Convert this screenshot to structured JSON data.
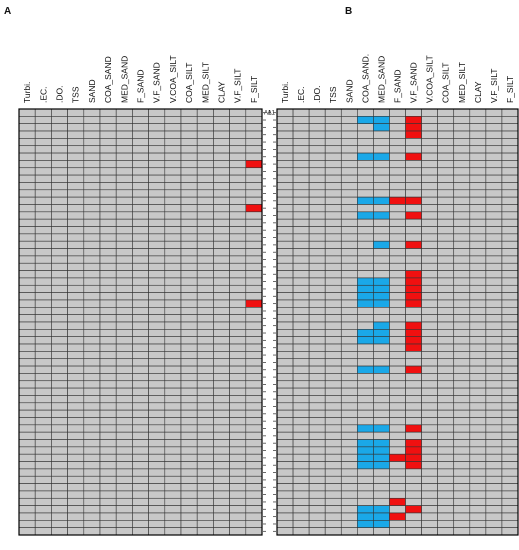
{
  "chart_data": [
    {
      "type": "heatmap",
      "panel_label": "A",
      "columns": [
        "Turbi.",
        ".EC.",
        ".DO.",
        "TSS",
        "SAND",
        "COA_SAND",
        "MED_SAND",
        "F_SAND",
        "V.F_SAND",
        "V.COA_SILT",
        "COA_SILT",
        "MED_SILT",
        "CLAY",
        "V.F_SILT",
        "F_SILT"
      ],
      "n_rows": 58,
      "row_label_first": "A1",
      "cell_states": [
        "normal",
        "blue",
        "red"
      ],
      "cells": [
        {
          "row": 7,
          "col": 14,
          "state": "red"
        },
        {
          "row": 13,
          "col": 14,
          "state": "red"
        },
        {
          "row": 26,
          "col": 14,
          "state": "red"
        }
      ]
    },
    {
      "type": "heatmap",
      "panel_label": "B",
      "columns": [
        "Turbi.",
        ".EC.",
        ".DO.",
        "TSS",
        "SAND",
        "COA_SAND.",
        "MED_SAND",
        "F_SAND",
        "V.F_SAND",
        "V.COA_SILT",
        "COA_SILT",
        "MED_SILT",
        "CLAY",
        "V.F_SILT",
        "F_SILT"
      ],
      "n_rows": 58,
      "row_label_first": "A1",
      "cell_states": [
        "normal",
        "blue",
        "red"
      ],
      "cells": [
        {
          "row": 1,
          "col": 5,
          "state": "blue"
        },
        {
          "row": 1,
          "col": 6,
          "state": "blue"
        },
        {
          "row": 1,
          "col": 8,
          "state": "red"
        },
        {
          "row": 2,
          "col": 6,
          "state": "blue"
        },
        {
          "row": 2,
          "col": 8,
          "state": "red"
        },
        {
          "row": 3,
          "col": 8,
          "state": "red"
        },
        {
          "row": 6,
          "col": 5,
          "state": "blue"
        },
        {
          "row": 6,
          "col": 6,
          "state": "blue"
        },
        {
          "row": 6,
          "col": 8,
          "state": "red"
        },
        {
          "row": 12,
          "col": 5,
          "state": "blue"
        },
        {
          "row": 12,
          "col": 6,
          "state": "blue"
        },
        {
          "row": 12,
          "col": 7,
          "state": "red"
        },
        {
          "row": 12,
          "col": 8,
          "state": "red"
        },
        {
          "row": 14,
          "col": 5,
          "state": "blue"
        },
        {
          "row": 14,
          "col": 6,
          "state": "blue"
        },
        {
          "row": 14,
          "col": 8,
          "state": "red"
        },
        {
          "row": 18,
          "col": 6,
          "state": "blue"
        },
        {
          "row": 18,
          "col": 8,
          "state": "red"
        },
        {
          "row": 22,
          "col": 8,
          "state": "red"
        },
        {
          "row": 23,
          "col": 5,
          "state": "blue"
        },
        {
          "row": 23,
          "col": 6,
          "state": "blue"
        },
        {
          "row": 23,
          "col": 8,
          "state": "red"
        },
        {
          "row": 24,
          "col": 5,
          "state": "blue"
        },
        {
          "row": 24,
          "col": 6,
          "state": "blue"
        },
        {
          "row": 24,
          "col": 8,
          "state": "red"
        },
        {
          "row": 25,
          "col": 5,
          "state": "blue"
        },
        {
          "row": 25,
          "col": 6,
          "state": "blue"
        },
        {
          "row": 25,
          "col": 8,
          "state": "red"
        },
        {
          "row": 26,
          "col": 5,
          "state": "blue"
        },
        {
          "row": 26,
          "col": 6,
          "state": "blue"
        },
        {
          "row": 26,
          "col": 8,
          "state": "red"
        },
        {
          "row": 29,
          "col": 6,
          "state": "blue"
        },
        {
          "row": 29,
          "col": 8,
          "state": "red"
        },
        {
          "row": 30,
          "col": 5,
          "state": "blue"
        },
        {
          "row": 30,
          "col": 6,
          "state": "blue"
        },
        {
          "row": 30,
          "col": 8,
          "state": "red"
        },
        {
          "row": 31,
          "col": 5,
          "state": "blue"
        },
        {
          "row": 31,
          "col": 6,
          "state": "blue"
        },
        {
          "row": 31,
          "col": 8,
          "state": "red"
        },
        {
          "row": 32,
          "col": 8,
          "state": "red"
        },
        {
          "row": 35,
          "col": 5,
          "state": "blue"
        },
        {
          "row": 35,
          "col": 6,
          "state": "blue"
        },
        {
          "row": 35,
          "col": 8,
          "state": "red"
        },
        {
          "row": 43,
          "col": 5,
          "state": "blue"
        },
        {
          "row": 43,
          "col": 6,
          "state": "blue"
        },
        {
          "row": 43,
          "col": 8,
          "state": "red"
        },
        {
          "row": 45,
          "col": 5,
          "state": "blue"
        },
        {
          "row": 45,
          "col": 6,
          "state": "blue"
        },
        {
          "row": 45,
          "col": 8,
          "state": "red"
        },
        {
          "row": 46,
          "col": 5,
          "state": "blue"
        },
        {
          "row": 46,
          "col": 6,
          "state": "blue"
        },
        {
          "row": 46,
          "col": 8,
          "state": "red"
        },
        {
          "row": 47,
          "col": 5,
          "state": "blue"
        },
        {
          "row": 47,
          "col": 6,
          "state": "blue"
        },
        {
          "row": 47,
          "col": 7,
          "state": "red"
        },
        {
          "row": 47,
          "col": 8,
          "state": "red"
        },
        {
          "row": 48,
          "col": 5,
          "state": "blue"
        },
        {
          "row": 48,
          "col": 6,
          "state": "blue"
        },
        {
          "row": 48,
          "col": 8,
          "state": "red"
        },
        {
          "row": 53,
          "col": 7,
          "state": "red"
        },
        {
          "row": 54,
          "col": 5,
          "state": "blue"
        },
        {
          "row": 54,
          "col": 6,
          "state": "blue"
        },
        {
          "row": 54,
          "col": 8,
          "state": "red"
        },
        {
          "row": 55,
          "col": 5,
          "state": "blue"
        },
        {
          "row": 55,
          "col": 6,
          "state": "blue"
        },
        {
          "row": 55,
          "col": 7,
          "state": "red"
        },
        {
          "row": 56,
          "col": 5,
          "state": "blue"
        },
        {
          "row": 56,
          "col": 6,
          "state": "blue"
        }
      ]
    }
  ],
  "colors": {
    "normal": "#c8c8c8",
    "blue": "#1aa8e8",
    "red": "#f01010",
    "grid": "#333333",
    "label": "#111111"
  }
}
